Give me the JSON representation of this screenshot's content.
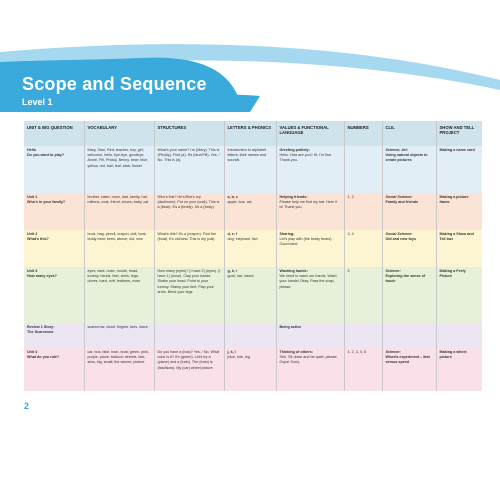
{
  "header": {
    "title": "Scope and Sequence",
    "level": "Level 1"
  },
  "columns": [
    "UNIT & BIG QUESTION",
    "VOCABULARY",
    "STRUCTURES",
    "LETTERS & PHONICS",
    "VALUES & FUNCTIONAL LANGUAGE",
    "NUMBERS",
    "CLIL",
    "SHOW AND TELL PROJECT"
  ],
  "rows": [
    {
      "unit": "Hello",
      "question": "Do you want to play?",
      "vocabulary": "Mary, Sam, Red; teacher, boy, girl; welcome, hello, bye-bye, goodbye; Annie, Fifi, Prickly, Benny, bear; blue, yellow, red, ball; leaf, stick, flower",
      "structures": "What's your name? I'm (Mary). This is (Prickly). Find (a). It's (blue/Fifi). Yes. / No. This is (a).",
      "letters": "Introduction to alphabet letters: their names and sounds",
      "values_title": "Greeting politely:",
      "values_text": "Hello. How are you? Hi. I'm fine. Thank you.",
      "numbers": "",
      "clil_subject": "Science, Art:",
      "clil_topic": "Using natural objects to create pictures",
      "project": "Making a name card"
    },
    {
      "unit": "Unit 1",
      "question": "Who's in your family?",
      "vocabulary": "brother, sister, mom, dad, family, hat, mittens, coat, friend, shoes; baby, cat",
      "structures": "Who's this? He's/She's my (dad/mom). Put on your (coat). This is a (bear). It's a (teddy). It's a (baby).",
      "letters": "a, b, c",
      "letters_words": "apple, bus, cat",
      "values_title": "Helping friends:",
      "values_text": "Please help me find my hat. Here it is! Thank you.",
      "numbers": "1, 2",
      "clil_subject": "Social Science:",
      "clil_topic": "Family and friends",
      "project": "Making a picture frame"
    },
    {
      "unit": "Unit 2",
      "question": "What's this?",
      "vocabulary": "book, bag, pencil, crayon, doll, boat, teddy bear; bees, above; old, new",
      "structures": "What's this? It's a (crayon). Find the (boat). It's old/new. This is my (cat).",
      "letters": "d, e, f",
      "letters_words": "dog, elephant, fish",
      "values_title": "Sharing:",
      "values_text": "Let's play with (the teddy bears). Good idea!",
      "numbers": "3, 4",
      "clil_subject": "Social Science:",
      "clil_topic": "Old and new toys",
      "project": "Making a Show and Tell box"
    },
    {
      "unit": "Unit 3",
      "question": "How many eyes?",
      "vocabulary": "eyes, ears, nose, mouth, head, tummy, hands, feet, arms, legs; doves; hard, soft, feathers, nose",
      "structures": "How many (eyes)? (I have 2) (eyes). (I have 1) (nose). Clap your hands. Shake your head. Point to your tummy. Stamp your feet. Flap your arms. Bend your legs.",
      "letters": "g, h, i",
      "letters_words": "goat, hat, insect",
      "values_title": "Washing hands:",
      "values_text": "We need to wash our hands. Wash your hands! Okay. Pass the soap, please.",
      "numbers": "5",
      "clil_subject": "Science:",
      "clil_topic": "Exploring the sense of touch",
      "project": "Making a Feely Picture"
    },
    {
      "unit": "Review 1 Story:",
      "question": "The Scarecrow",
      "vocabulary": "scarecrow, cloud, fingers, toes, wave",
      "structures": "",
      "letters": "",
      "values_title": "Being active",
      "values_text": "",
      "numbers": "",
      "clil_subject": "",
      "clil_topic": "",
      "project": ""
    },
    {
      "unit": "Unit 4",
      "question": "What do you ride?",
      "vocabulary": "car, bus, bike, train, boat; green, pink, purple, plane, balloon; wheels, fast, slow, big, small; the winner; picture",
      "structures": "Do you have a (bus)? Yes, / No. What color is it? It's (green). Let's try a (plane) and a (train). The (train) is (fast/slow). My (car) wheel picture.",
      "letters": "j, k, l",
      "letters_words": "juice, kite, leg",
      "values_title": "Thinking of others:",
      "values_text": "Shh. Sit down and be quiet, please. Oops! Sorry.",
      "numbers": "1, 2, 3, 4, 5",
      "clil_subject": "Science:",
      "clil_topic": "Wheels experiment – fast versus speed",
      "project": "Making a wheel picture"
    }
  ],
  "page_number": "2",
  "colors": {
    "banner": "#3aa9dc",
    "banner_light": "#a6d9ef",
    "header_row": "#cfe3ec"
  }
}
